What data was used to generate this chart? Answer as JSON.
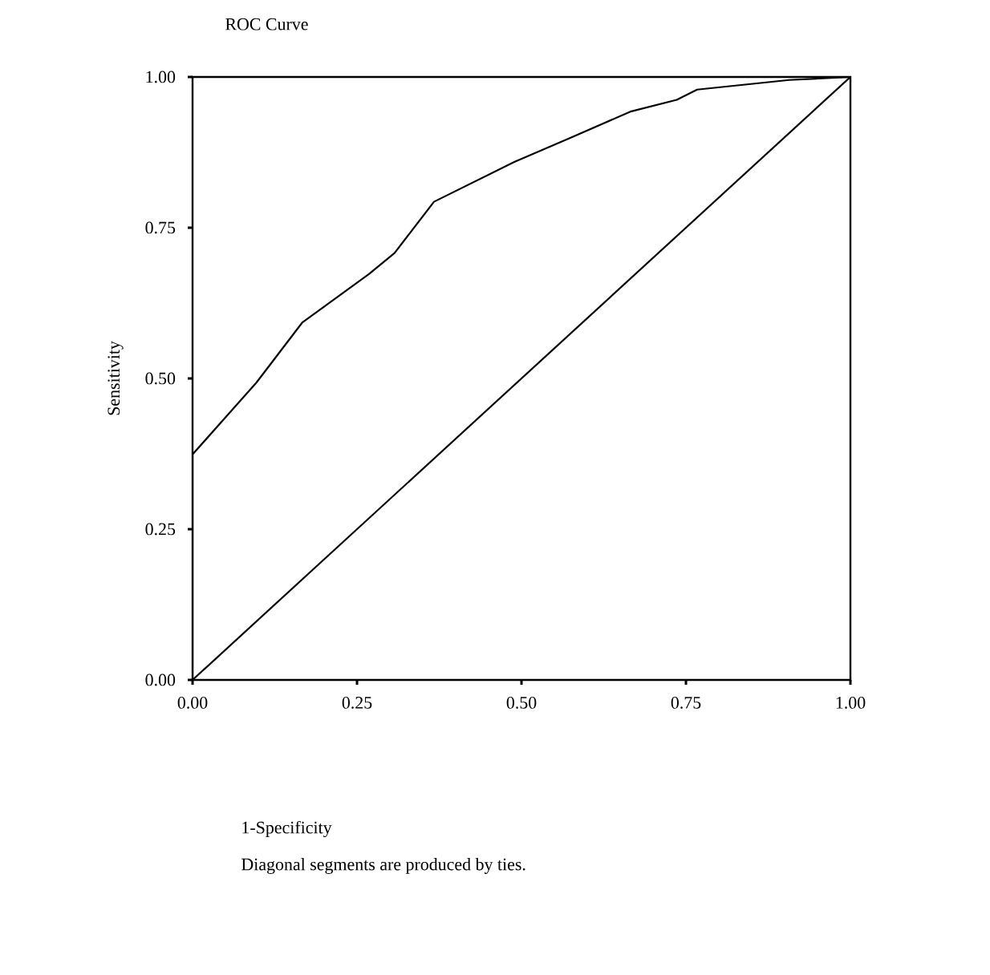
{
  "chart_data": {
    "type": "line",
    "title": "ROC Curve",
    "ylabel": "Sensitivity",
    "annotations": [
      "1-Specificity",
      "Diagonal segments are produced by ties."
    ],
    "series": [
      {
        "color": "#000000",
        "x": [
          0,
          0,
          0.097,
          0.167,
          0.268,
          0.307,
          0.367,
          0.489,
          0.572,
          0.667,
          0.736,
          0.767,
          0.907,
          1
        ],
        "values": [
          0,
          0.374,
          0.493,
          0.593,
          0.673,
          0.708,
          0.793,
          0.859,
          0.898,
          0.943,
          0.962,
          0.979,
          0.995,
          1
        ]
      },
      {
        "color": "#000000",
        "x": [
          0,
          1
        ],
        "values": [
          0,
          1
        ]
      }
    ],
    "xlim": [
      0,
      1
    ],
    "ylim": [
      0,
      1
    ],
    "xticks": [
      {
        "value": 0,
        "label": "0.00"
      },
      {
        "value": 0.25,
        "label": "0.25"
      },
      {
        "value": 0.5,
        "label": "0.50"
      },
      {
        "value": 0.75,
        "label": "0.75"
      },
      {
        "value": 1,
        "label": "1.00"
      }
    ],
    "yticks": [
      {
        "value": 0,
        "label": "0.00"
      },
      {
        "value": 0.25,
        "label": "0.25"
      },
      {
        "value": 0.5,
        "label": "0.50"
      },
      {
        "value": 0.75,
        "label": "0.75"
      },
      {
        "value": 1,
        "label": "1.00"
      }
    ],
    "grid": false,
    "marker": "none",
    "line_style": "solid"
  }
}
